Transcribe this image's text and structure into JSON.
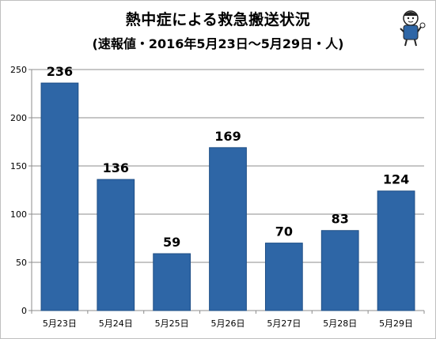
{
  "chart_data": {
    "type": "bar",
    "title": "熱中症による救急搬送状況",
    "subtitle": "(速報値・2016年5月23日～5月29日・人)",
    "categories": [
      "5月23日",
      "5月24日",
      "5月25日",
      "5月26日",
      "5月27日",
      "5月28日",
      "5月29日"
    ],
    "values": [
      236,
      136,
      59,
      169,
      70,
      83,
      124
    ],
    "ylim": [
      0,
      250
    ],
    "yticks": [
      0,
      50,
      100,
      150,
      200,
      250
    ],
    "grid": true,
    "bar_color": "#2e66a6",
    "bar_edge_color": "#1f4f86"
  }
}
